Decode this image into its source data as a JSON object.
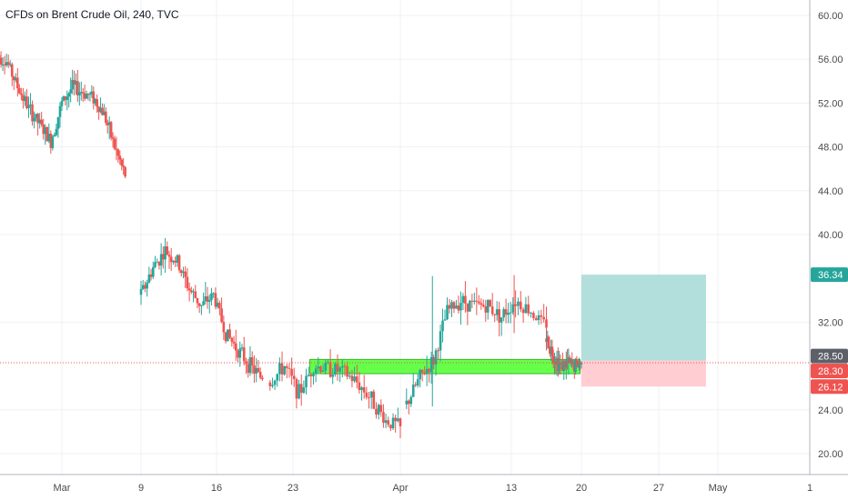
{
  "header": {
    "title": "CFDs on Brent Crude Oil, 240, TVC"
  },
  "colors": {
    "up": "#26a69a",
    "down": "#ef5350",
    "support_zone": "#66ff4a",
    "target_zone": "#b2dfdb",
    "stop_zone": "#ffcdd2",
    "price_line": "#ef5350"
  },
  "price_axis": {
    "labels": [
      "60.00",
      "56.00",
      "52.00",
      "48.00",
      "44.00",
      "40.00",
      "32.00",
      "24.00",
      "20.00"
    ],
    "badges": {
      "target": "36.34",
      "entry": "28.50",
      "current": "28.30",
      "stop": "26.12"
    }
  },
  "time_axis": {
    "labels": [
      "Mar",
      "9",
      "16",
      "23",
      "Apr",
      "13",
      "20",
      "27",
      "May",
      "1"
    ]
  },
  "chart_data": {
    "type": "candlestick",
    "title": "CFDs on Brent Crude Oil, 240, TVC",
    "ylim": [
      18.0,
      61.0
    ],
    "y_ticks": [
      20,
      24,
      32,
      40,
      44,
      48,
      52,
      56,
      60
    ],
    "segments": [
      {
        "start": "Feb 25",
        "end": "Mar 6",
        "open_start": 56.5,
        "close_end": 45.3,
        "trend": [
          56.5,
          55.8,
          53.5,
          51.5,
          50.0,
          48.5,
          52.0,
          53.5,
          53.0,
          52.5,
          51.0,
          48.0,
          45.3
        ]
      },
      {
        "start": "Mar 9",
        "end": "Mar 19",
        "open_start": 34.5,
        "close_end": 26.8,
        "trend": [
          34.5,
          37.0,
          38.5,
          37.5,
          35.0,
          33.5,
          34.5,
          31.0,
          29.5,
          28.0,
          26.8
        ]
      },
      {
        "start": "Mar 20",
        "end": "Apr 1",
        "open_start": 26.5,
        "close_end": 22.5,
        "trend": [
          26.5,
          28.0,
          25.5,
          28.0,
          27.8,
          27.5,
          26.5,
          25.0,
          23.0,
          22.5
        ]
      },
      {
        "start": "Apr 2",
        "end": "Apr 14",
        "open_start": 24.5,
        "close_end": 31.5,
        "trend": [
          24.5,
          27.0,
          28.5,
          33.0,
          34.0,
          33.5,
          33.5,
          32.5,
          34.0,
          33.0,
          31.5
        ]
      },
      {
        "start": "Apr 15",
        "end": "Apr 20",
        "open_start": 30.5,
        "close_end": 28.3,
        "trend": [
          30.5,
          29.0,
          28.0,
          28.2,
          28.0,
          28.3
        ]
      }
    ],
    "zones": {
      "support": {
        "low": 27.3,
        "high": 28.6,
        "from": "Mar 24",
        "to": "Apr 20"
      },
      "target": {
        "low": 28.5,
        "high": 36.34,
        "from": "Apr 20",
        "to": "May 1"
      },
      "stop": {
        "low": 26.12,
        "high": 28.5,
        "from": "Apr 20",
        "to": "May 1"
      }
    },
    "levels": {
      "target": 36.34,
      "entry": 28.5,
      "current": 28.3,
      "stop": 26.12
    }
  }
}
